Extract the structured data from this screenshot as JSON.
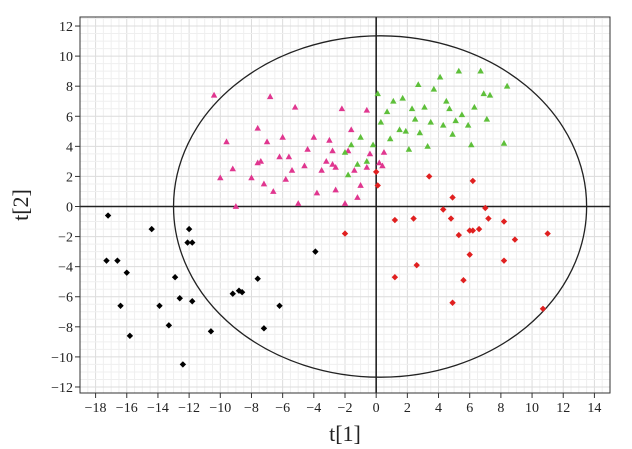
{
  "chart_data": {
    "type": "scatter",
    "title": "",
    "xlabel": "t[1]",
    "ylabel": "t[2]",
    "xlim": [
      -19,
      15
    ],
    "ylim": [
      -12.4,
      12.6
    ],
    "xticks": [
      -18,
      -16,
      -14,
      -12,
      -10,
      -8,
      -6,
      -4,
      -2,
      0,
      2,
      4,
      6,
      8,
      10,
      12,
      14
    ],
    "yticks": [
      -12,
      -10,
      -8,
      -6,
      -4,
      -2,
      0,
      2,
      4,
      6,
      8,
      10,
      12
    ],
    "grid": true,
    "legend": "none",
    "ellipse": {
      "cx": 0.25,
      "cy": 0,
      "rx": 13.25,
      "ry": 11.35
    },
    "series": [
      {
        "color": "#000000",
        "marker": "diamond",
        "points": [
          [
            -17.2,
            -0.6
          ],
          [
            -17.3,
            -3.6
          ],
          [
            -16.6,
            -3.6
          ],
          [
            -16.4,
            -6.6
          ],
          [
            -16.0,
            -4.4
          ],
          [
            -15.8,
            -8.6
          ],
          [
            -14.4,
            -1.5
          ],
          [
            -13.9,
            -6.6
          ],
          [
            -13.3,
            -7.9
          ],
          [
            -12.9,
            -4.7
          ],
          [
            -12.6,
            -6.1
          ],
          [
            -12.4,
            -10.5
          ],
          [
            -12.0,
            -1.5
          ],
          [
            -12.1,
            -2.4
          ],
          [
            -11.8,
            -2.4
          ],
          [
            -11.8,
            -6.3
          ],
          [
            -10.6,
            -8.3
          ],
          [
            -9.2,
            -5.8
          ],
          [
            -8.8,
            -5.6
          ],
          [
            -8.6,
            -5.7
          ],
          [
            -7.6,
            -4.8
          ],
          [
            -7.2,
            -8.1
          ],
          [
            -6.2,
            -6.6
          ],
          [
            -3.9,
            -3.0
          ]
        ]
      },
      {
        "color": "#e0368f",
        "marker": "triangle",
        "points": [
          [
            -10.4,
            7.4
          ],
          [
            -10.0,
            1.9
          ],
          [
            -9.6,
            4.3
          ],
          [
            -9.2,
            2.5
          ],
          [
            -9.0,
            0.0
          ],
          [
            -8.0,
            1.9
          ],
          [
            -7.6,
            2.9
          ],
          [
            -7.6,
            5.2
          ],
          [
            -7.4,
            3.0
          ],
          [
            -7.2,
            1.5
          ],
          [
            -7.0,
            4.3
          ],
          [
            -6.8,
            7.3
          ],
          [
            -6.6,
            1.0
          ],
          [
            -6.2,
            3.3
          ],
          [
            -6.0,
            4.6
          ],
          [
            -5.8,
            1.8
          ],
          [
            -5.6,
            3.3
          ],
          [
            -5.4,
            2.4
          ],
          [
            -5.2,
            6.6
          ],
          [
            -5.0,
            0.2
          ],
          [
            -4.6,
            2.7
          ],
          [
            -4.4,
            3.8
          ],
          [
            -4.0,
            4.6
          ],
          [
            -3.8,
            0.9
          ],
          [
            -3.5,
            2.4
          ],
          [
            -3.2,
            3.0
          ],
          [
            -3.0,
            4.4
          ],
          [
            -2.8,
            3.7
          ],
          [
            -2.6,
            2.6
          ],
          [
            -2.8,
            2.8
          ],
          [
            -2.6,
            1.1
          ],
          [
            -2.2,
            6.5
          ],
          [
            -2.0,
            0.2
          ],
          [
            -1.6,
            5.1
          ],
          [
            -1.8,
            3.7
          ],
          [
            -1.4,
            2.4
          ],
          [
            -1.2,
            0.6
          ],
          [
            -1.0,
            1.4
          ],
          [
            -0.6,
            6.4
          ],
          [
            -0.4,
            3.5
          ],
          [
            -0.6,
            2.6
          ],
          [
            0.2,
            2.9
          ],
          [
            0.4,
            2.7
          ],
          [
            0.5,
            3.6
          ]
        ]
      },
      {
        "color": "#5ebf3a",
        "marker": "triangle",
        "points": [
          [
            -2.0,
            3.6
          ],
          [
            -1.8,
            2.1
          ],
          [
            -1.6,
            4.1
          ],
          [
            -1.2,
            2.8
          ],
          [
            -1.0,
            4.6
          ],
          [
            -0.6,
            3.0
          ],
          [
            -0.2,
            4.1
          ],
          [
            0.1,
            7.5
          ],
          [
            0.3,
            5.6
          ],
          [
            0.7,
            6.3
          ],
          [
            0.9,
            4.5
          ],
          [
            1.1,
            7.0
          ],
          [
            1.5,
            5.1
          ],
          [
            1.7,
            7.2
          ],
          [
            1.9,
            5.0
          ],
          [
            2.1,
            3.8
          ],
          [
            2.3,
            6.5
          ],
          [
            2.5,
            5.8
          ],
          [
            2.7,
            8.1
          ],
          [
            2.8,
            4.9
          ],
          [
            3.1,
            6.6
          ],
          [
            3.3,
            4.0
          ],
          [
            3.5,
            5.6
          ],
          [
            3.7,
            7.8
          ],
          [
            4.1,
            8.6
          ],
          [
            4.3,
            5.4
          ],
          [
            4.5,
            7.0
          ],
          [
            4.7,
            6.5
          ],
          [
            4.9,
            4.8
          ],
          [
            5.1,
            5.7
          ],
          [
            5.3,
            9.0
          ],
          [
            5.5,
            6.1
          ],
          [
            5.9,
            5.4
          ],
          [
            6.1,
            4.1
          ],
          [
            6.3,
            6.6
          ],
          [
            6.7,
            9.0
          ],
          [
            6.9,
            7.5
          ],
          [
            7.1,
            5.8
          ],
          [
            7.3,
            7.4
          ],
          [
            8.2,
            4.2
          ],
          [
            8.4,
            8.0
          ]
        ]
      },
      {
        "color": "#e02020",
        "marker": "diamond",
        "points": [
          [
            -2.0,
            -1.8
          ],
          [
            0.0,
            2.3
          ],
          [
            0.1,
            1.4
          ],
          [
            1.2,
            -0.9
          ],
          [
            1.2,
            -4.7
          ],
          [
            2.4,
            -0.8
          ],
          [
            2.6,
            -3.9
          ],
          [
            3.4,
            2.0
          ],
          [
            4.3,
            -0.2
          ],
          [
            4.8,
            -0.8
          ],
          [
            4.9,
            -6.4
          ],
          [
            4.9,
            0.6
          ],
          [
            5.3,
            -1.9
          ],
          [
            5.6,
            -4.9
          ],
          [
            6.0,
            -1.6
          ],
          [
            6.0,
            -3.2
          ],
          [
            6.2,
            1.7
          ],
          [
            6.2,
            -1.6
          ],
          [
            6.6,
            -1.5
          ],
          [
            7.0,
            -0.1
          ],
          [
            7.2,
            -0.8
          ],
          [
            8.2,
            -3.6
          ],
          [
            8.2,
            -1.0
          ],
          [
            8.9,
            -2.2
          ],
          [
            10.7,
            -6.8
          ],
          [
            11.0,
            -1.8
          ]
        ]
      }
    ]
  }
}
